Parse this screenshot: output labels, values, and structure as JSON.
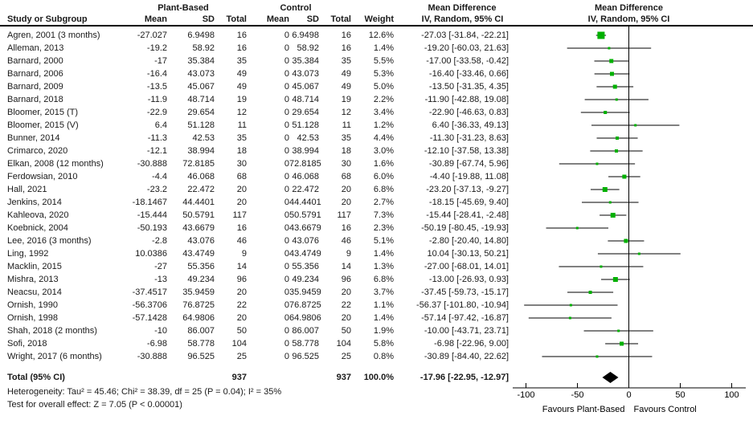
{
  "table": {
    "group_headers": {
      "plant_based": "Plant-Based",
      "control": "Control",
      "mean_difference": "Mean Difference"
    },
    "col_headers": {
      "study": "Study or Subgroup",
      "mean": "Mean",
      "sd": "SD",
      "total": "Total",
      "weight": "Weight",
      "md_line1": "Mean Difference",
      "md_line2": "IV, Random, 95% CI"
    },
    "rows": [
      {
        "study": "Agren, 2001 (3 months)",
        "pb_mean": "-27.027",
        "pb_sd": "6.9498",
        "pb_total": "16",
        "c_mean": "0",
        "c_sd": "6.9498",
        "c_total": "16",
        "weight": "12.6%",
        "md_ci": "-27.03 [-31.84, -22.21]"
      },
      {
        "study": "Alleman, 2013",
        "pb_mean": "-19.2",
        "pb_sd": "58.92",
        "pb_total": "16",
        "c_mean": "0",
        "c_sd": "58.92",
        "c_total": "16",
        "weight": "1.4%",
        "md_ci": "-19.20 [-60.03, 21.63]"
      },
      {
        "study": "Barnard, 2000",
        "pb_mean": "-17",
        "pb_sd": "35.384",
        "pb_total": "35",
        "c_mean": "0",
        "c_sd": "35.384",
        "c_total": "35",
        "weight": "5.5%",
        "md_ci": "-17.00 [-33.58, -0.42]"
      },
      {
        "study": "Barnard, 2006",
        "pb_mean": "-16.4",
        "pb_sd": "43.073",
        "pb_total": "49",
        "c_mean": "0",
        "c_sd": "43.073",
        "c_total": "49",
        "weight": "5.3%",
        "md_ci": "-16.40 [-33.46, 0.66]"
      },
      {
        "study": "Barnard, 2009",
        "pb_mean": "-13.5",
        "pb_sd": "45.067",
        "pb_total": "49",
        "c_mean": "0",
        "c_sd": "45.067",
        "c_total": "49",
        "weight": "5.0%",
        "md_ci": "-13.50 [-31.35, 4.35]"
      },
      {
        "study": "Barnard, 2018",
        "pb_mean": "-11.9",
        "pb_sd": "48.714",
        "pb_total": "19",
        "c_mean": "0",
        "c_sd": "48.714",
        "c_total": "19",
        "weight": "2.2%",
        "md_ci": "-11.90 [-42.88, 19.08]"
      },
      {
        "study": "Bloomer, 2015 (T)",
        "pb_mean": "-22.9",
        "pb_sd": "29.654",
        "pb_total": "12",
        "c_mean": "0",
        "c_sd": "29.654",
        "c_total": "12",
        "weight": "3.4%",
        "md_ci": "-22.90 [-46.63, 0.83]"
      },
      {
        "study": "Bloomer, 2015 (V)",
        "pb_mean": "6.4",
        "pb_sd": "51.128",
        "pb_total": "11",
        "c_mean": "0",
        "c_sd": "51.128",
        "c_total": "11",
        "weight": "1.2%",
        "md_ci": "6.40 [-36.33, 49.13]"
      },
      {
        "study": "Bunner, 2014",
        "pb_mean": "-11.3",
        "pb_sd": "42.53",
        "pb_total": "35",
        "c_mean": "0",
        "c_sd": "42.53",
        "c_total": "35",
        "weight": "4.4%",
        "md_ci": "-11.30 [-31.23, 8.63]"
      },
      {
        "study": "Crimarco, 2020",
        "pb_mean": "-12.1",
        "pb_sd": "38.994",
        "pb_total": "18",
        "c_mean": "0",
        "c_sd": "38.994",
        "c_total": "18",
        "weight": "3.0%",
        "md_ci": "-12.10 [-37.58, 13.38]"
      },
      {
        "study": "Elkan, 2008 (12 months)",
        "pb_mean": "-30.888",
        "pb_sd": "72.8185",
        "pb_total": "30",
        "c_mean": "0",
        "c_sd": "72.8185",
        "c_total": "30",
        "weight": "1.6%",
        "md_ci": "-30.89 [-67.74, 5.96]"
      },
      {
        "study": "Ferdowsian, 2010",
        "pb_mean": "-4.4",
        "pb_sd": "46.068",
        "pb_total": "68",
        "c_mean": "0",
        "c_sd": "46.068",
        "c_total": "68",
        "weight": "6.0%",
        "md_ci": "-4.40 [-19.88, 11.08]"
      },
      {
        "study": "Hall, 2021",
        "pb_mean": "-23.2",
        "pb_sd": "22.472",
        "pb_total": "20",
        "c_mean": "0",
        "c_sd": "22.472",
        "c_total": "20",
        "weight": "6.8%",
        "md_ci": "-23.20 [-37.13, -9.27]"
      },
      {
        "study": "Jenkins, 2014",
        "pb_mean": "-18.1467",
        "pb_sd": "44.4401",
        "pb_total": "20",
        "c_mean": "0",
        "c_sd": "44.4401",
        "c_total": "20",
        "weight": "2.7%",
        "md_ci": "-18.15 [-45.69, 9.40]"
      },
      {
        "study": "Kahleova, 2020",
        "pb_mean": "-15.444",
        "pb_sd": "50.5791",
        "pb_total": "117",
        "c_mean": "0",
        "c_sd": "50.5791",
        "c_total": "117",
        "weight": "7.3%",
        "md_ci": "-15.44 [-28.41, -2.48]"
      },
      {
        "study": "Koebnick, 2004",
        "pb_mean": "-50.193",
        "pb_sd": "43.6679",
        "pb_total": "16",
        "c_mean": "0",
        "c_sd": "43.6679",
        "c_total": "16",
        "weight": "2.3%",
        "md_ci": "-50.19 [-80.45, -19.93]"
      },
      {
        "study": "Lee, 2016 (3 months)",
        "pb_mean": "-2.8",
        "pb_sd": "43.076",
        "pb_total": "46",
        "c_mean": "0",
        "c_sd": "43.076",
        "c_total": "46",
        "weight": "5.1%",
        "md_ci": "-2.80 [-20.40, 14.80]"
      },
      {
        "study": "Ling, 1992",
        "pb_mean": "10.0386",
        "pb_sd": "43.4749",
        "pb_total": "9",
        "c_mean": "0",
        "c_sd": "43.4749",
        "c_total": "9",
        "weight": "1.4%",
        "md_ci": "10.04 [-30.13, 50.21]"
      },
      {
        "study": "Macklin, 2015",
        "pb_mean": "-27",
        "pb_sd": "55.356",
        "pb_total": "14",
        "c_mean": "0",
        "c_sd": "55.356",
        "c_total": "14",
        "weight": "1.3%",
        "md_ci": "-27.00 [-68.01, 14.01]"
      },
      {
        "study": "Mishra, 2013",
        "pb_mean": "-13",
        "pb_sd": "49.234",
        "pb_total": "96",
        "c_mean": "0",
        "c_sd": "49.234",
        "c_total": "96",
        "weight": "6.8%",
        "md_ci": "-13.00 [-26.93, 0.93]"
      },
      {
        "study": "Neacsu, 2014",
        "pb_mean": "-37.4517",
        "pb_sd": "35.9459",
        "pb_total": "20",
        "c_mean": "0",
        "c_sd": "35.9459",
        "c_total": "20",
        "weight": "3.7%",
        "md_ci": "-37.45 [-59.73, -15.17]"
      },
      {
        "study": "Ornish, 1990",
        "pb_mean": "-56.3706",
        "pb_sd": "76.8725",
        "pb_total": "22",
        "c_mean": "0",
        "c_sd": "76.8725",
        "c_total": "22",
        "weight": "1.1%",
        "md_ci": "-56.37 [-101.80, -10.94]"
      },
      {
        "study": "Ornish, 1998",
        "pb_mean": "-57.1428",
        "pb_sd": "64.9806",
        "pb_total": "20",
        "c_mean": "0",
        "c_sd": "64.9806",
        "c_total": "20",
        "weight": "1.4%",
        "md_ci": "-57.14 [-97.42, -16.87]"
      },
      {
        "study": "Shah, 2018 (2 months)",
        "pb_mean": "-10",
        "pb_sd": "86.007",
        "pb_total": "50",
        "c_mean": "0",
        "c_sd": "86.007",
        "c_total": "50",
        "weight": "1.9%",
        "md_ci": "-10.00 [-43.71, 23.71]"
      },
      {
        "study": "Sofi, 2018",
        "pb_mean": "-6.98",
        "pb_sd": "58.778",
        "pb_total": "104",
        "c_mean": "0",
        "c_sd": "58.778",
        "c_total": "104",
        "weight": "5.8%",
        "md_ci": "-6.98 [-22.96, 9.00]"
      },
      {
        "study": "Wright, 2017 (6 months)",
        "pb_mean": "-30.888",
        "pb_sd": "96.525",
        "pb_total": "25",
        "c_mean": "0",
        "c_sd": "96.525",
        "c_total": "25",
        "weight": "0.8%",
        "md_ci": "-30.89 [-84.40, 22.62]"
      }
    ],
    "total": {
      "label": "Total (95% CI)",
      "pb_total": "937",
      "c_total": "937",
      "weight": "100.0%",
      "md_ci": "-17.96 [-22.95, -12.97]"
    }
  },
  "footer": {
    "heterogeneity": "Heterogeneity: Tau² = 45.46; Chi² = 38.39, df = 25 (P = 0.04); I² = 35%",
    "overall_effect": "Test for overall effect: Z = 7.05 (P < 0.00001)"
  },
  "chart_data": {
    "type": "scatter",
    "subtype": "forest-plot",
    "title": "Mean Difference",
    "subtitle": "IV, Random, 95% CI",
    "effect_measure": "Mean Difference (IV, Random, 95% CI)",
    "x_axis": {
      "ticks": [
        -100,
        -50,
        0,
        50,
        100
      ],
      "range": [
        -113,
        115
      ]
    },
    "favours_left": "Favours Plant-Based",
    "favours_right": "Favours Control",
    "marker_color": "#00b000",
    "line_color": "#000000",
    "diamond_color": "#000000",
    "studies": [
      {
        "name": "Agren, 2001 (3 months)",
        "est": -27.03,
        "lo": -31.84,
        "hi": -22.21,
        "weight": 12.6
      },
      {
        "name": "Alleman, 2013",
        "est": -19.2,
        "lo": -60.03,
        "hi": 21.63,
        "weight": 1.4
      },
      {
        "name": "Barnard, 2000",
        "est": -17.0,
        "lo": -33.58,
        "hi": -0.42,
        "weight": 5.5
      },
      {
        "name": "Barnard, 2006",
        "est": -16.4,
        "lo": -33.46,
        "hi": 0.66,
        "weight": 5.3
      },
      {
        "name": "Barnard, 2009",
        "est": -13.5,
        "lo": -31.35,
        "hi": 4.35,
        "weight": 5.0
      },
      {
        "name": "Barnard, 2018",
        "est": -11.9,
        "lo": -42.88,
        "hi": 19.08,
        "weight": 2.2
      },
      {
        "name": "Bloomer, 2015 (T)",
        "est": -22.9,
        "lo": -46.63,
        "hi": 0.83,
        "weight": 3.4
      },
      {
        "name": "Bloomer, 2015 (V)",
        "est": 6.4,
        "lo": -36.33,
        "hi": 49.13,
        "weight": 1.2
      },
      {
        "name": "Bunner, 2014",
        "est": -11.3,
        "lo": -31.23,
        "hi": 8.63,
        "weight": 4.4
      },
      {
        "name": "Crimarco, 2020",
        "est": -12.1,
        "lo": -37.58,
        "hi": 13.38,
        "weight": 3.0
      },
      {
        "name": "Elkan, 2008 (12 months)",
        "est": -30.89,
        "lo": -67.74,
        "hi": 5.96,
        "weight": 1.6
      },
      {
        "name": "Ferdowsian, 2010",
        "est": -4.4,
        "lo": -19.88,
        "hi": 11.08,
        "weight": 6.0
      },
      {
        "name": "Hall, 2021",
        "est": -23.2,
        "lo": -37.13,
        "hi": -9.27,
        "weight": 6.8
      },
      {
        "name": "Jenkins, 2014",
        "est": -18.15,
        "lo": -45.69,
        "hi": 9.4,
        "weight": 2.7
      },
      {
        "name": "Kahleova, 2020",
        "est": -15.44,
        "lo": -28.41,
        "hi": -2.48,
        "weight": 7.3
      },
      {
        "name": "Koebnick, 2004",
        "est": -50.19,
        "lo": -80.45,
        "hi": -19.93,
        "weight": 2.3
      },
      {
        "name": "Lee, 2016 (3 months)",
        "est": -2.8,
        "lo": -20.4,
        "hi": 14.8,
        "weight": 5.1
      },
      {
        "name": "Ling, 1992",
        "est": 10.04,
        "lo": -30.13,
        "hi": 50.21,
        "weight": 1.4
      },
      {
        "name": "Macklin, 2015",
        "est": -27.0,
        "lo": -68.01,
        "hi": 14.01,
        "weight": 1.3
      },
      {
        "name": "Mishra, 2013",
        "est": -13.0,
        "lo": -26.93,
        "hi": 0.93,
        "weight": 6.8
      },
      {
        "name": "Neacsu, 2014",
        "est": -37.45,
        "lo": -59.73,
        "hi": -15.17,
        "weight": 3.7
      },
      {
        "name": "Ornish, 1990",
        "est": -56.37,
        "lo": -101.8,
        "hi": -10.94,
        "weight": 1.1
      },
      {
        "name": "Ornish, 1998",
        "est": -57.14,
        "lo": -97.42,
        "hi": -16.87,
        "weight": 1.4
      },
      {
        "name": "Shah, 2018 (2 months)",
        "est": -10.0,
        "lo": -43.71,
        "hi": 23.71,
        "weight": 1.9
      },
      {
        "name": "Sofi, 2018",
        "est": -6.98,
        "lo": -22.96,
        "hi": 9.0,
        "weight": 5.8
      },
      {
        "name": "Wright, 2017 (6 months)",
        "est": -30.89,
        "lo": -84.4,
        "hi": 22.62,
        "weight": 0.8
      }
    ],
    "total": {
      "label": "Total (95% CI)",
      "est": -17.96,
      "lo": -22.95,
      "hi": -12.97,
      "weight": 100.0
    }
  }
}
